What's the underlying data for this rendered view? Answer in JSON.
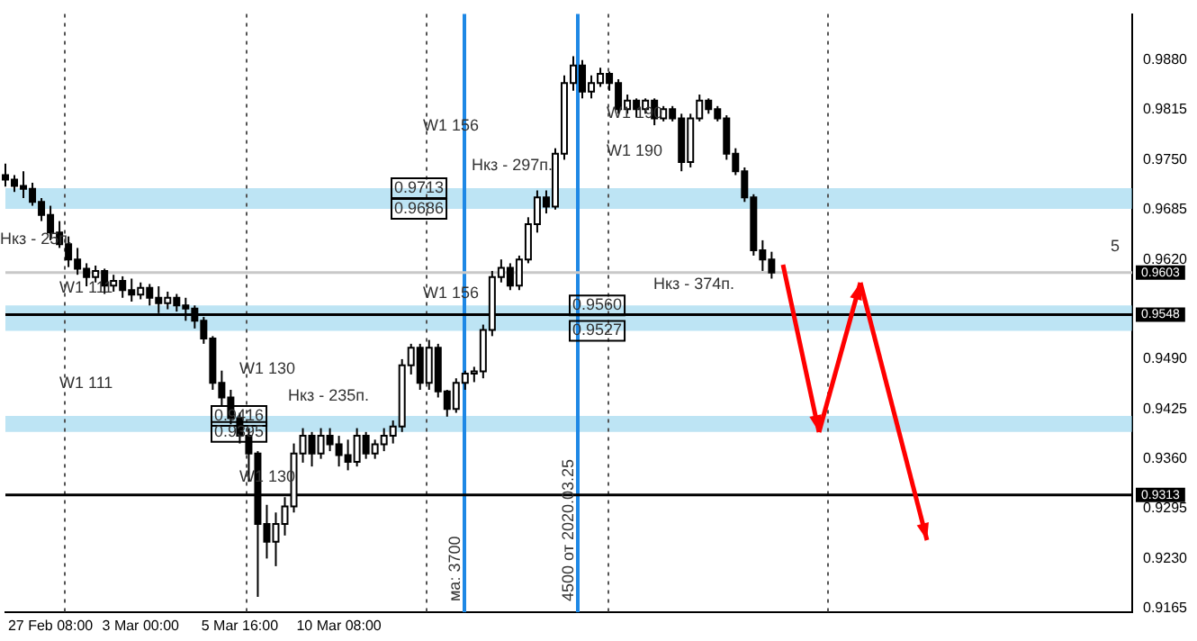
{
  "chart_data": {
    "type": "candlestick",
    "categories": [
      null,
      null,
      null,
      null,
      null,
      "27 Feb 08:00",
      null,
      null,
      null,
      null,
      null,
      null,
      null,
      null,
      null,
      "3 Mar 00:00",
      null,
      null,
      null,
      null,
      null,
      null,
      null,
      null,
      null,
      null,
      "5 Mar 16:00",
      null,
      null,
      null,
      null,
      null,
      null,
      null,
      null,
      null,
      null,
      "10 Mar 08:00",
      null,
      null,
      null,
      null,
      null,
      null,
      null,
      null,
      null,
      null,
      null,
      null,
      null,
      null,
      null,
      null,
      null,
      null,
      null,
      null,
      null,
      null,
      null,
      null,
      null,
      null,
      null,
      null,
      null,
      null,
      null,
      null,
      null,
      null,
      null,
      null,
      null,
      null,
      null,
      null,
      null,
      null,
      null,
      null,
      null,
      null,
      null,
      null,
      null,
      null,
      null,
      null,
      null,
      null,
      null,
      null,
      null,
      null,
      null,
      null,
      null,
      null,
      null,
      null,
      null,
      null,
      null,
      null,
      null,
      null,
      null,
      null,
      null,
      null,
      null,
      null,
      null,
      null,
      null,
      null,
      null,
      null,
      null,
      null,
      null,
      null,
      null,
      null
    ],
    "ohlc": [
      [
        0.973,
        0.9745,
        0.9715,
        0.9724
      ],
      [
        0.9724,
        0.973,
        0.9708,
        0.9716
      ],
      [
        0.9716,
        0.9735,
        0.97,
        0.9712
      ],
      [
        0.9712,
        0.972,
        0.969,
        0.9695
      ],
      [
        0.9695,
        0.97,
        0.967,
        0.9678
      ],
      [
        0.9678,
        0.969,
        0.9645,
        0.9655
      ],
      [
        0.9655,
        0.967,
        0.9635,
        0.964
      ],
      [
        0.964,
        0.965,
        0.961,
        0.962
      ],
      [
        0.962,
        0.9635,
        0.96,
        0.9608
      ],
      [
        0.9608,
        0.9615,
        0.9585,
        0.9597
      ],
      [
        0.9597,
        0.9612,
        0.959,
        0.9605
      ],
      [
        0.9605,
        0.9608,
        0.9575,
        0.9586
      ],
      [
        0.9586,
        0.96,
        0.9578,
        0.9592
      ],
      [
        0.9592,
        0.9598,
        0.957,
        0.958
      ],
      [
        0.958,
        0.9595,
        0.9565,
        0.9574
      ],
      [
        0.9574,
        0.959,
        0.9568,
        0.9583
      ],
      [
        0.9583,
        0.9588,
        0.956,
        0.957
      ],
      [
        0.957,
        0.9585,
        0.955,
        0.9563
      ],
      [
        0.9563,
        0.9578,
        0.9555,
        0.957
      ],
      [
        0.957,
        0.9575,
        0.9552,
        0.956
      ],
      [
        0.956,
        0.957,
        0.954,
        0.9556
      ],
      [
        0.9556,
        0.956,
        0.953,
        0.954
      ],
      [
        0.954,
        0.9545,
        0.951,
        0.9517
      ],
      [
        0.9517,
        0.952,
        0.945,
        0.9459
      ],
      [
        0.9459,
        0.9475,
        0.943,
        0.944
      ],
      [
        0.944,
        0.945,
        0.9405,
        0.9413
      ],
      [
        0.9413,
        0.942,
        0.938,
        0.939
      ],
      [
        0.939,
        0.94,
        0.933,
        0.9367
      ],
      [
        0.9367,
        0.937,
        0.918,
        0.9275
      ],
      [
        0.9275,
        0.93,
        0.923,
        0.9252
      ],
      [
        0.9252,
        0.929,
        0.922,
        0.9275
      ],
      [
        0.9275,
        0.931,
        0.926,
        0.9298
      ],
      [
        0.9298,
        0.938,
        0.929,
        0.9367
      ],
      [
        0.9367,
        0.94,
        0.9355,
        0.939
      ],
      [
        0.939,
        0.9395,
        0.935,
        0.9367
      ],
      [
        0.9367,
        0.94,
        0.936,
        0.939
      ],
      [
        0.939,
        0.94,
        0.937,
        0.9379
      ],
      [
        0.9379,
        0.939,
        0.935,
        0.9365
      ],
      [
        0.9365,
        0.9385,
        0.9345,
        0.9356
      ],
      [
        0.9356,
        0.94,
        0.935,
        0.939
      ],
      [
        0.939,
        0.9395,
        0.936,
        0.9367
      ],
      [
        0.9367,
        0.9385,
        0.936,
        0.9379
      ],
      [
        0.9379,
        0.94,
        0.937,
        0.939
      ],
      [
        0.939,
        0.941,
        0.938,
        0.9402
      ],
      [
        0.9402,
        0.949,
        0.9395,
        0.9482
      ],
      [
        0.9482,
        0.951,
        0.947,
        0.9505
      ],
      [
        0.9505,
        0.951,
        0.945,
        0.9459
      ],
      [
        0.9459,
        0.9515,
        0.945,
        0.9505
      ],
      [
        0.9505,
        0.951,
        0.944,
        0.9448
      ],
      [
        0.9448,
        0.945,
        0.9415,
        0.9425
      ],
      [
        0.9425,
        0.9465,
        0.942,
        0.9459
      ],
      [
        0.9459,
        0.9475,
        0.945,
        0.9471
      ],
      [
        0.9471,
        0.948,
        0.946,
        0.9474
      ],
      [
        0.9474,
        0.9535,
        0.9465,
        0.9528
      ],
      [
        0.9528,
        0.9605,
        0.952,
        0.9597
      ],
      [
        0.9597,
        0.962,
        0.959,
        0.9609
      ],
      [
        0.9609,
        0.9615,
        0.958,
        0.9586
      ],
      [
        0.9586,
        0.9625,
        0.958,
        0.962
      ],
      [
        0.962,
        0.9675,
        0.9615,
        0.9666
      ],
      [
        0.9666,
        0.971,
        0.9655,
        0.9701
      ],
      [
        0.9701,
        0.971,
        0.968,
        0.9689
      ],
      [
        0.9689,
        0.9765,
        0.9685,
        0.9758
      ],
      [
        0.9758,
        0.986,
        0.975,
        0.985
      ],
      [
        0.985,
        0.9885,
        0.984,
        0.9873
      ],
      [
        0.9873,
        0.988,
        0.983,
        0.9839
      ],
      [
        0.9839,
        0.986,
        0.983,
        0.985
      ],
      [
        0.985,
        0.987,
        0.9845,
        0.9862
      ],
      [
        0.9862,
        0.9865,
        0.984,
        0.985
      ],
      [
        0.985,
        0.9855,
        0.981,
        0.9816
      ],
      [
        0.9816,
        0.9835,
        0.981,
        0.9827
      ],
      [
        0.9827,
        0.983,
        0.9805,
        0.9816
      ],
      [
        0.9816,
        0.983,
        0.981,
        0.9827
      ],
      [
        0.9827,
        0.983,
        0.9795,
        0.9804
      ],
      [
        0.9804,
        0.982,
        0.98,
        0.9816
      ],
      [
        0.9816,
        0.982,
        0.98,
        0.9804
      ],
      [
        0.9804,
        0.981,
        0.9735,
        0.9747
      ],
      [
        0.9747,
        0.981,
        0.974,
        0.9804
      ],
      [
        0.9804,
        0.9835,
        0.98,
        0.9827
      ],
      [
        0.9827,
        0.983,
        0.981,
        0.9816
      ],
      [
        0.9816,
        0.982,
        0.98,
        0.9804
      ],
      [
        0.9804,
        0.9808,
        0.975,
        0.9758
      ],
      [
        0.9758,
        0.9765,
        0.973,
        0.9735
      ],
      [
        0.9735,
        0.974,
        0.9695,
        0.9701
      ],
      [
        0.9701,
        0.9705,
        0.9625,
        0.9632
      ],
      [
        0.9632,
        0.9645,
        0.9605,
        0.962
      ],
      [
        0.962,
        0.963,
        0.9595,
        0.9603
      ],
      null,
      null,
      null,
      null,
      null,
      null,
      null,
      null,
      null,
      null,
      null,
      null,
      null,
      null,
      null,
      null,
      null,
      null,
      null,
      null,
      null,
      null,
      null,
      null,
      null,
      null,
      null,
      null,
      null,
      null,
      null,
      null,
      null,
      null,
      null,
      null,
      null,
      null,
      null,
      null
    ],
    "ylim": [
      0.916,
      0.994
    ],
    "yticks": [
      {
        "value": 0.988,
        "label": "0.9880"
      },
      {
        "value": 0.9815,
        "label": "0.9815"
      },
      {
        "value": 0.975,
        "label": "0.9750"
      },
      {
        "value": 0.9685,
        "label": "0.9685"
      },
      {
        "value": 0.962,
        "label": "0.9620"
      },
      {
        "value": 0.949,
        "label": "0.9490"
      },
      {
        "value": 0.9425,
        "label": "0.9425"
      },
      {
        "value": 0.936,
        "label": "0.9360"
      },
      {
        "value": 0.9295,
        "label": "0.9295"
      },
      {
        "value": 0.923,
        "label": "0.9230"
      },
      {
        "value": 0.9165,
        "label": "0.9165"
      }
    ],
    "ref_lines": [
      {
        "axis": "y",
        "value": 0.9548,
        "label": "0.9548",
        "color": "#000000",
        "line_style": "solid"
      },
      {
        "axis": "y",
        "value": 0.9313,
        "label": "0.9313",
        "color": "#000000",
        "line_style": "solid"
      },
      {
        "axis": "y",
        "value": 0.9603,
        "label": "0.9603",
        "color": "#c8c8c8",
        "line_style": "solid"
      }
    ],
    "bands": [
      {
        "axis": "y",
        "from": 0.9686,
        "to": 0.9713,
        "label": null,
        "color": "#87ceeb"
      },
      {
        "axis": "y",
        "from": 0.9527,
        "to": 0.956,
        "label": null,
        "color": "#87ceeb"
      },
      {
        "axis": "y",
        "from": 0.9395,
        "to": 0.9416,
        "label": null,
        "color": "#87ceeb"
      }
    ],
    "annotations": [
      "W1 156",
      "W1 156",
      "W1 190",
      "W1 190",
      "W1 130",
      "W1 111",
      "W1 111",
      "W1 130",
      "Нкз - 25п.",
      "Нкз - 297п.",
      "Нкз - 235п.",
      "Нкз - 374п.",
      {
        "text": "0.9713",
        "y": 0.9713
      },
      {
        "text": "0.9686",
        "y": 0.9686
      },
      {
        "text": "0.9416",
        "y": 0.9416
      },
      {
        "text": "0.9395",
        "y": 0.9395
      },
      {
        "text": "0.9560",
        "y": 0.956
      },
      {
        "text": "0.9527",
        "y": 0.9527
      },
      "5",
      "ма: 3700",
      "4500 от 2020.03.25"
    ]
  }
}
